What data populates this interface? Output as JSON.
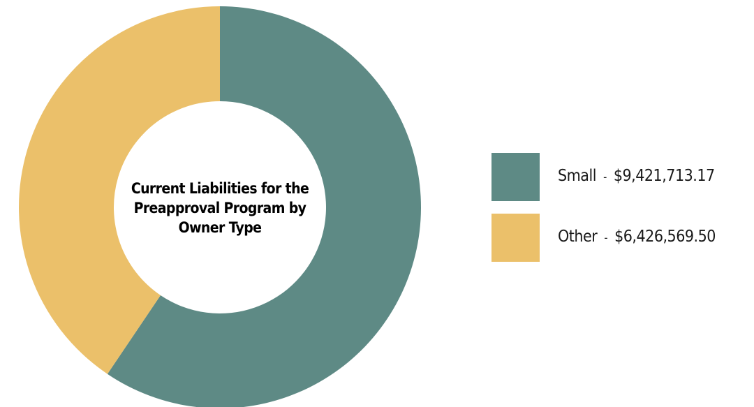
{
  "chart_data": {
    "type": "pie",
    "donut": true,
    "title": "Current Liabilities for the Preapproval Program by Owner Type",
    "title_lines": [
      "Current Liabilities for the",
      "Preapproval Program by",
      "Owner Type"
    ],
    "legend_position": "right",
    "slices": [
      {
        "label": "Small",
        "value": 9421713.17,
        "value_label": "$9,421,713.17",
        "color": "#5e8a85"
      },
      {
        "label": "Other",
        "value": 6426569.5,
        "value_label": "$6,426,569.50",
        "color": "#ebc06a"
      }
    ],
    "separator": "-"
  }
}
